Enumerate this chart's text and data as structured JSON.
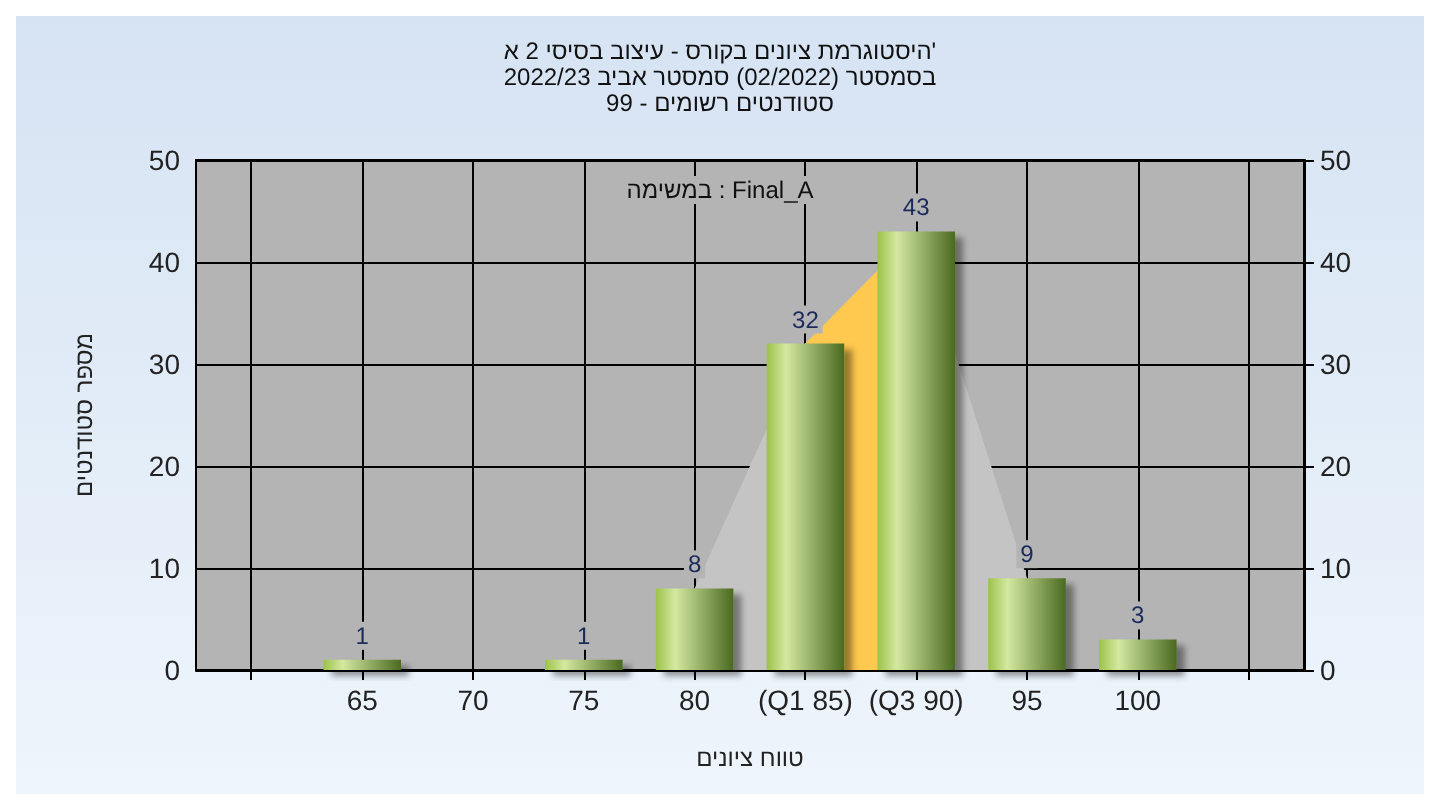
{
  "chart_data": {
    "type": "bar",
    "title": "היסטוגרמת ציונים בקורס - עיצוב בסיסי 2 א'",
    "subtitle": "בסמסטר (02/2022) סמסטר אביב 2022/23\nסטודנטים רשומים - 99",
    "annotations": [
      "במשימה : Final_A"
    ],
    "xlabel": "טווח ציונים",
    "ylabel": "מספר סטודנטים",
    "categories": [
      null,
      "65",
      "70",
      "75",
      "80",
      "(Q1 85)",
      "(Q3 90)",
      "95",
      "100",
      null
    ],
    "series": [
      {
        "type": "area",
        "color": "#c4c4c4",
        "values": [
          null,
          null,
          null,
          null,
          8,
          32,
          43,
          9,
          null,
          null
        ]
      },
      {
        "type": "area",
        "color": "#ffc84e",
        "values": [
          null,
          null,
          null,
          null,
          null,
          32,
          43,
          null,
          null,
          null
        ]
      },
      {
        "color": "#9cc24a",
        "values": [
          null,
          1,
          0,
          1,
          8,
          32,
          43,
          9,
          3,
          null
        ],
        "value_labels": [
          null,
          "1",
          null,
          "1",
          "8",
          "32",
          "43",
          "9",
          "3",
          null
        ]
      }
    ],
    "ylim": [
      0,
      50
    ],
    "yticks": [
      0,
      10,
      20,
      30,
      40,
      50
    ],
    "y2lim": [
      0,
      50
    ],
    "y2ticks": [
      0,
      10,
      20,
      30,
      40,
      50
    ],
    "grid": true
  }
}
